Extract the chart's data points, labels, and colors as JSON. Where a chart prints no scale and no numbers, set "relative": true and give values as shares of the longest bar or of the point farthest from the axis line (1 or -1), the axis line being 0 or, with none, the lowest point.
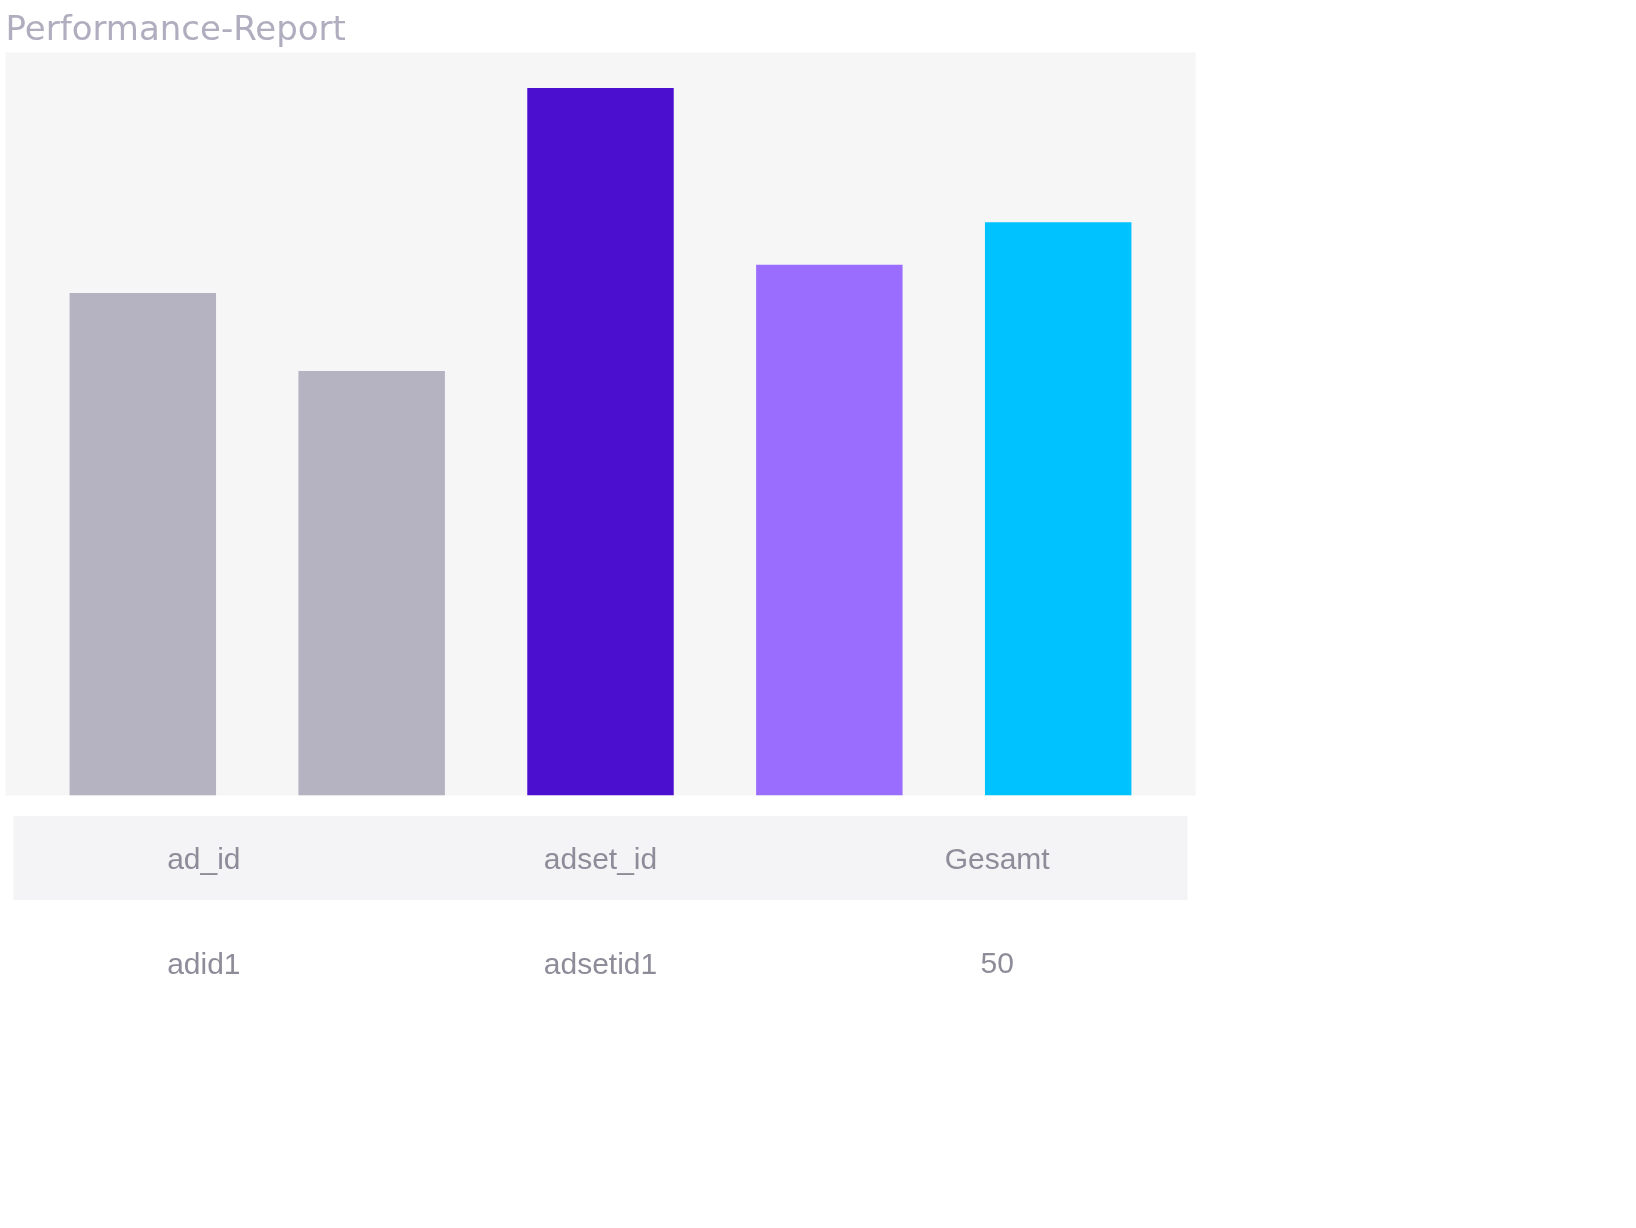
{
  "chart_data": {
    "type": "bar",
    "title": "Performance-Report",
    "relative": true,
    "categories": [
      null,
      null,
      null,
      null,
      null
    ],
    "values": [
      0.71,
      0.6,
      1,
      0.75,
      0.81
    ],
    "colors": [
      "#b5b2c2",
      "#b5b2c2",
      "#4b0fd0",
      "#9b6dff",
      "#00c2ff"
    ],
    "annotations": [
      "ad_id",
      "adset_id",
      "Gesamt",
      "adid1",
      "adsetid1",
      "50"
    ]
  }
}
